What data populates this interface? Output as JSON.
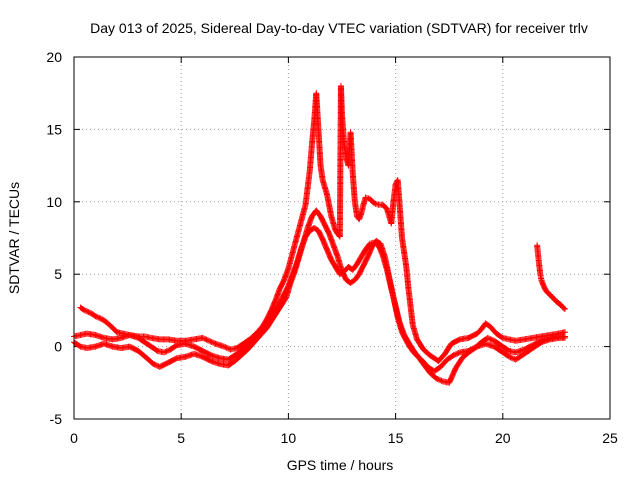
{
  "chart_data": {
    "type": "scatter",
    "title": "Day 013 of 2025, Sidereal Day-to-day VTEC variation (SDTVAR) for receiver trlv",
    "xlabel": "GPS time / hours",
    "ylabel": "SDTVAR / TECUs",
    "xlim": [
      0,
      25
    ],
    "ylim": [
      -5,
      20
    ],
    "x_ticks": [
      0,
      5,
      10,
      15,
      20,
      25
    ],
    "y_ticks": [
      -5,
      0,
      5,
      10,
      15,
      20
    ],
    "grid": true,
    "marker": "+",
    "color": "#ff0000",
    "series": [
      {
        "name": "track-upper",
        "points": [
          [
            0.3,
            2.7
          ],
          [
            0.5,
            2.5
          ],
          [
            0.8,
            2.3
          ],
          [
            1.0,
            2.1
          ],
          [
            1.3,
            1.9
          ],
          [
            1.5,
            1.7
          ],
          [
            1.8,
            1.3
          ],
          [
            2.0,
            1.0
          ],
          [
            2.3,
            0.9
          ],
          [
            2.6,
            0.8
          ],
          [
            3.0,
            0.7
          ],
          [
            3.3,
            0.7
          ],
          [
            3.6,
            0.6
          ],
          [
            4.0,
            0.5
          ],
          [
            4.4,
            0.5
          ],
          [
            4.8,
            0.4
          ],
          [
            5.2,
            0.4
          ],
          [
            5.6,
            0.5
          ],
          [
            6.0,
            0.6
          ],
          [
            6.3,
            0.4
          ],
          [
            6.6,
            0.2
          ],
          [
            7.0,
            0.0
          ],
          [
            7.3,
            -0.2
          ],
          [
            7.6,
            -0.1
          ],
          [
            7.9,
            0.2
          ],
          [
            8.2,
            0.5
          ],
          [
            8.5,
            0.9
          ],
          [
            8.8,
            1.4
          ],
          [
            9.0,
            1.9
          ],
          [
            9.2,
            2.5
          ],
          [
            9.4,
            3.2
          ],
          [
            9.6,
            4.0
          ],
          [
            9.8,
            4.6
          ],
          [
            10.0,
            5.4
          ],
          [
            10.2,
            6.5
          ],
          [
            10.4,
            7.6
          ],
          [
            10.6,
            8.7
          ],
          [
            10.8,
            9.8
          ],
          [
            10.9,
            11.0
          ],
          [
            11.0,
            12.2
          ],
          [
            11.1,
            14.0
          ],
          [
            11.2,
            15.5
          ],
          [
            11.3,
            17.5
          ],
          [
            11.4,
            15.0
          ],
          [
            11.5,
            12.5
          ],
          [
            11.6,
            11.5
          ],
          [
            11.8,
            10.5
          ],
          [
            12.0,
            9.0
          ],
          [
            12.2,
            8.0
          ],
          [
            12.4,
            7.6
          ],
          [
            12.45,
            18.0
          ],
          [
            12.5,
            16.0
          ],
          [
            12.6,
            14.0
          ],
          [
            12.7,
            13.0
          ],
          [
            12.8,
            12.5
          ],
          [
            12.9,
            14.8
          ],
          [
            13.0,
            12.0
          ],
          [
            13.1,
            10.0
          ],
          [
            13.2,
            9.0
          ],
          [
            13.3,
            8.8
          ],
          [
            13.4,
            9.2
          ],
          [
            13.5,
            9.8
          ],
          [
            13.6,
            10.3
          ],
          [
            13.8,
            10.2
          ],
          [
            14.0,
            9.9
          ],
          [
            14.2,
            9.8
          ],
          [
            14.4,
            9.8
          ],
          [
            14.6,
            9.5
          ],
          [
            14.8,
            8.5
          ],
          [
            14.9,
            10.0
          ],
          [
            15.0,
            11.2
          ],
          [
            15.1,
            11.5
          ],
          [
            15.2,
            9.5
          ],
          [
            15.3,
            7.5
          ],
          [
            15.4,
            6.5
          ],
          [
            15.5,
            5.5
          ],
          [
            15.6,
            4.0
          ],
          [
            15.8,
            1.5
          ],
          [
            16.0,
            0.5
          ],
          [
            16.3,
            -0.2
          ],
          [
            16.6,
            -0.6
          ],
          [
            17.0,
            -1.0
          ],
          [
            17.3,
            -0.5
          ],
          [
            17.6,
            0.2
          ],
          [
            18.0,
            0.5
          ],
          [
            18.4,
            0.6
          ],
          [
            18.8,
            0.9
          ],
          [
            19.0,
            1.2
          ],
          [
            19.2,
            1.6
          ],
          [
            19.4,
            1.4
          ],
          [
            19.7,
            0.9
          ],
          [
            20.0,
            0.6
          ],
          [
            20.3,
            0.5
          ],
          [
            20.6,
            0.4
          ],
          [
            21.0,
            0.5
          ],
          [
            21.4,
            0.6
          ],
          [
            21.8,
            0.7
          ],
          [
            22.2,
            0.8
          ],
          [
            22.6,
            0.9
          ],
          [
            22.9,
            1.0
          ]
        ]
      },
      {
        "name": "track-middle",
        "points": [
          [
            0.0,
            0.7
          ],
          [
            0.3,
            0.8
          ],
          [
            0.6,
            0.9
          ],
          [
            1.0,
            0.8
          ],
          [
            1.4,
            0.6
          ],
          [
            1.8,
            0.5
          ],
          [
            2.2,
            0.6
          ],
          [
            2.6,
            0.8
          ],
          [
            3.0,
            0.6
          ],
          [
            3.3,
            0.3
          ],
          [
            3.6,
            0.0
          ],
          [
            3.9,
            -0.3
          ],
          [
            4.2,
            -0.4
          ],
          [
            4.5,
            -0.2
          ],
          [
            4.8,
            0.1
          ],
          [
            5.2,
            0.2
          ],
          [
            5.6,
            0.0
          ],
          [
            6.0,
            -0.3
          ],
          [
            6.4,
            -0.6
          ],
          [
            6.8,
            -0.8
          ],
          [
            7.2,
            -0.9
          ],
          [
            7.5,
            -0.6
          ],
          [
            7.8,
            -0.3
          ],
          [
            8.1,
            0.2
          ],
          [
            8.4,
            0.7
          ],
          [
            8.7,
            1.2
          ],
          [
            9.0,
            1.7
          ],
          [
            9.3,
            2.3
          ],
          [
            9.6,
            3.0
          ],
          [
            9.8,
            3.6
          ],
          [
            10.0,
            4.2
          ],
          [
            10.2,
            5.0
          ],
          [
            10.4,
            5.8
          ],
          [
            10.6,
            6.8
          ],
          [
            10.8,
            7.6
          ],
          [
            11.0,
            8.0
          ],
          [
            11.2,
            8.2
          ],
          [
            11.4,
            8.0
          ],
          [
            11.6,
            7.4
          ],
          [
            11.8,
            6.7
          ],
          [
            12.0,
            6.0
          ],
          [
            12.2,
            5.5
          ],
          [
            12.4,
            5.0
          ],
          [
            12.6,
            5.2
          ],
          [
            12.8,
            5.5
          ],
          [
            13.0,
            5.3
          ],
          [
            13.2,
            5.7
          ],
          [
            13.4,
            6.2
          ],
          [
            13.6,
            6.7
          ],
          [
            13.8,
            7.1
          ],
          [
            14.0,
            7.2
          ],
          [
            14.2,
            7.0
          ],
          [
            14.4,
            6.3
          ],
          [
            14.6,
            5.3
          ],
          [
            14.8,
            4.0
          ],
          [
            15.0,
            2.8
          ],
          [
            15.2,
            1.6
          ],
          [
            15.4,
            0.8
          ],
          [
            15.6,
            0.3
          ],
          [
            15.8,
            -0.2
          ],
          [
            16.0,
            -0.6
          ],
          [
            16.3,
            -1.2
          ],
          [
            16.6,
            -1.8
          ],
          [
            16.9,
            -2.2
          ],
          [
            17.2,
            -2.4
          ],
          [
            17.5,
            -2.5
          ],
          [
            17.8,
            -1.5
          ],
          [
            18.1,
            -0.8
          ],
          [
            18.4,
            -0.4
          ],
          [
            18.7,
            -0.1
          ],
          [
            19.0,
            0.3
          ],
          [
            19.3,
            0.6
          ],
          [
            19.6,
            0.4
          ],
          [
            20.0,
            0.0
          ],
          [
            20.3,
            -0.3
          ],
          [
            20.6,
            -0.4
          ],
          [
            21.0,
            -0.2
          ],
          [
            21.4,
            0.1
          ],
          [
            21.8,
            0.4
          ],
          [
            22.2,
            0.6
          ],
          [
            22.6,
            0.7
          ],
          [
            22.9,
            0.7
          ]
        ]
      },
      {
        "name": "track-lower",
        "points": [
          [
            0.0,
            0.3
          ],
          [
            0.3,
            0.0
          ],
          [
            0.6,
            -0.1
          ],
          [
            1.0,
            0.0
          ],
          [
            1.4,
            0.2
          ],
          [
            1.8,
            0.0
          ],
          [
            2.2,
            -0.1
          ],
          [
            2.6,
            0.0
          ],
          [
            3.0,
            -0.3
          ],
          [
            3.4,
            -0.8
          ],
          [
            3.7,
            -1.2
          ],
          [
            4.0,
            -1.4
          ],
          [
            4.4,
            -1.1
          ],
          [
            4.8,
            -0.8
          ],
          [
            5.2,
            -0.7
          ],
          [
            5.6,
            -0.5
          ],
          [
            6.0,
            -0.7
          ],
          [
            6.4,
            -1.0
          ],
          [
            6.8,
            -1.2
          ],
          [
            7.2,
            -1.3
          ],
          [
            7.5,
            -1.0
          ],
          [
            7.8,
            -0.6
          ],
          [
            8.1,
            -0.2
          ],
          [
            8.4,
            0.3
          ],
          [
            8.7,
            0.8
          ],
          [
            9.0,
            1.3
          ],
          [
            9.3,
            2.0
          ],
          [
            9.6,
            2.7
          ],
          [
            9.9,
            3.4
          ],
          [
            10.1,
            4.4
          ],
          [
            10.3,
            5.2
          ],
          [
            10.5,
            6.2
          ],
          [
            10.7,
            7.2
          ],
          [
            10.9,
            8.2
          ],
          [
            11.1,
            9.0
          ],
          [
            11.3,
            9.4
          ],
          [
            11.5,
            9.0
          ],
          [
            11.7,
            8.4
          ],
          [
            11.9,
            7.8
          ],
          [
            12.1,
            7.0
          ],
          [
            12.3,
            6.2
          ],
          [
            12.5,
            5.2
          ],
          [
            12.7,
            4.6
          ],
          [
            12.9,
            4.4
          ],
          [
            13.1,
            4.6
          ],
          [
            13.3,
            5.0
          ],
          [
            13.5,
            5.6
          ],
          [
            13.7,
            6.2
          ],
          [
            13.9,
            6.9
          ],
          [
            14.1,
            7.3
          ],
          [
            14.3,
            7.1
          ],
          [
            14.5,
            6.2
          ],
          [
            14.7,
            4.8
          ],
          [
            14.9,
            3.4
          ],
          [
            15.1,
            2.0
          ],
          [
            15.3,
            1.0
          ],
          [
            15.5,
            0.4
          ],
          [
            15.7,
            -0.1
          ],
          [
            15.9,
            -0.5
          ],
          [
            16.2,
            -0.9
          ],
          [
            16.5,
            -1.4
          ],
          [
            16.8,
            -1.7
          ],
          [
            17.1,
            -1.4
          ],
          [
            17.4,
            -0.9
          ],
          [
            17.7,
            -0.6
          ],
          [
            18.0,
            -0.4
          ],
          [
            18.4,
            -0.3
          ],
          [
            18.8,
            0.0
          ],
          [
            19.2,
            0.2
          ],
          [
            19.6,
            0.0
          ],
          [
            20.0,
            -0.4
          ],
          [
            20.3,
            -0.7
          ],
          [
            20.6,
            -0.9
          ],
          [
            21.0,
            -0.5
          ],
          [
            21.4,
            -0.1
          ],
          [
            21.8,
            0.3
          ],
          [
            22.2,
            0.5
          ],
          [
            22.6,
            0.6
          ],
          [
            22.9,
            0.6
          ]
        ]
      },
      {
        "name": "track-late",
        "points": [
          [
            21.6,
            7.0
          ],
          [
            21.65,
            6.3
          ],
          [
            21.7,
            5.6
          ],
          [
            21.75,
            5.0
          ],
          [
            21.8,
            4.6
          ],
          [
            21.9,
            4.2
          ],
          [
            22.0,
            3.9
          ],
          [
            22.1,
            3.7
          ],
          [
            22.2,
            3.6
          ],
          [
            22.3,
            3.4
          ],
          [
            22.4,
            3.3
          ],
          [
            22.5,
            3.1
          ],
          [
            22.6,
            3.0
          ],
          [
            22.7,
            2.9
          ],
          [
            22.8,
            2.7
          ],
          [
            22.9,
            2.6
          ]
        ]
      }
    ]
  }
}
